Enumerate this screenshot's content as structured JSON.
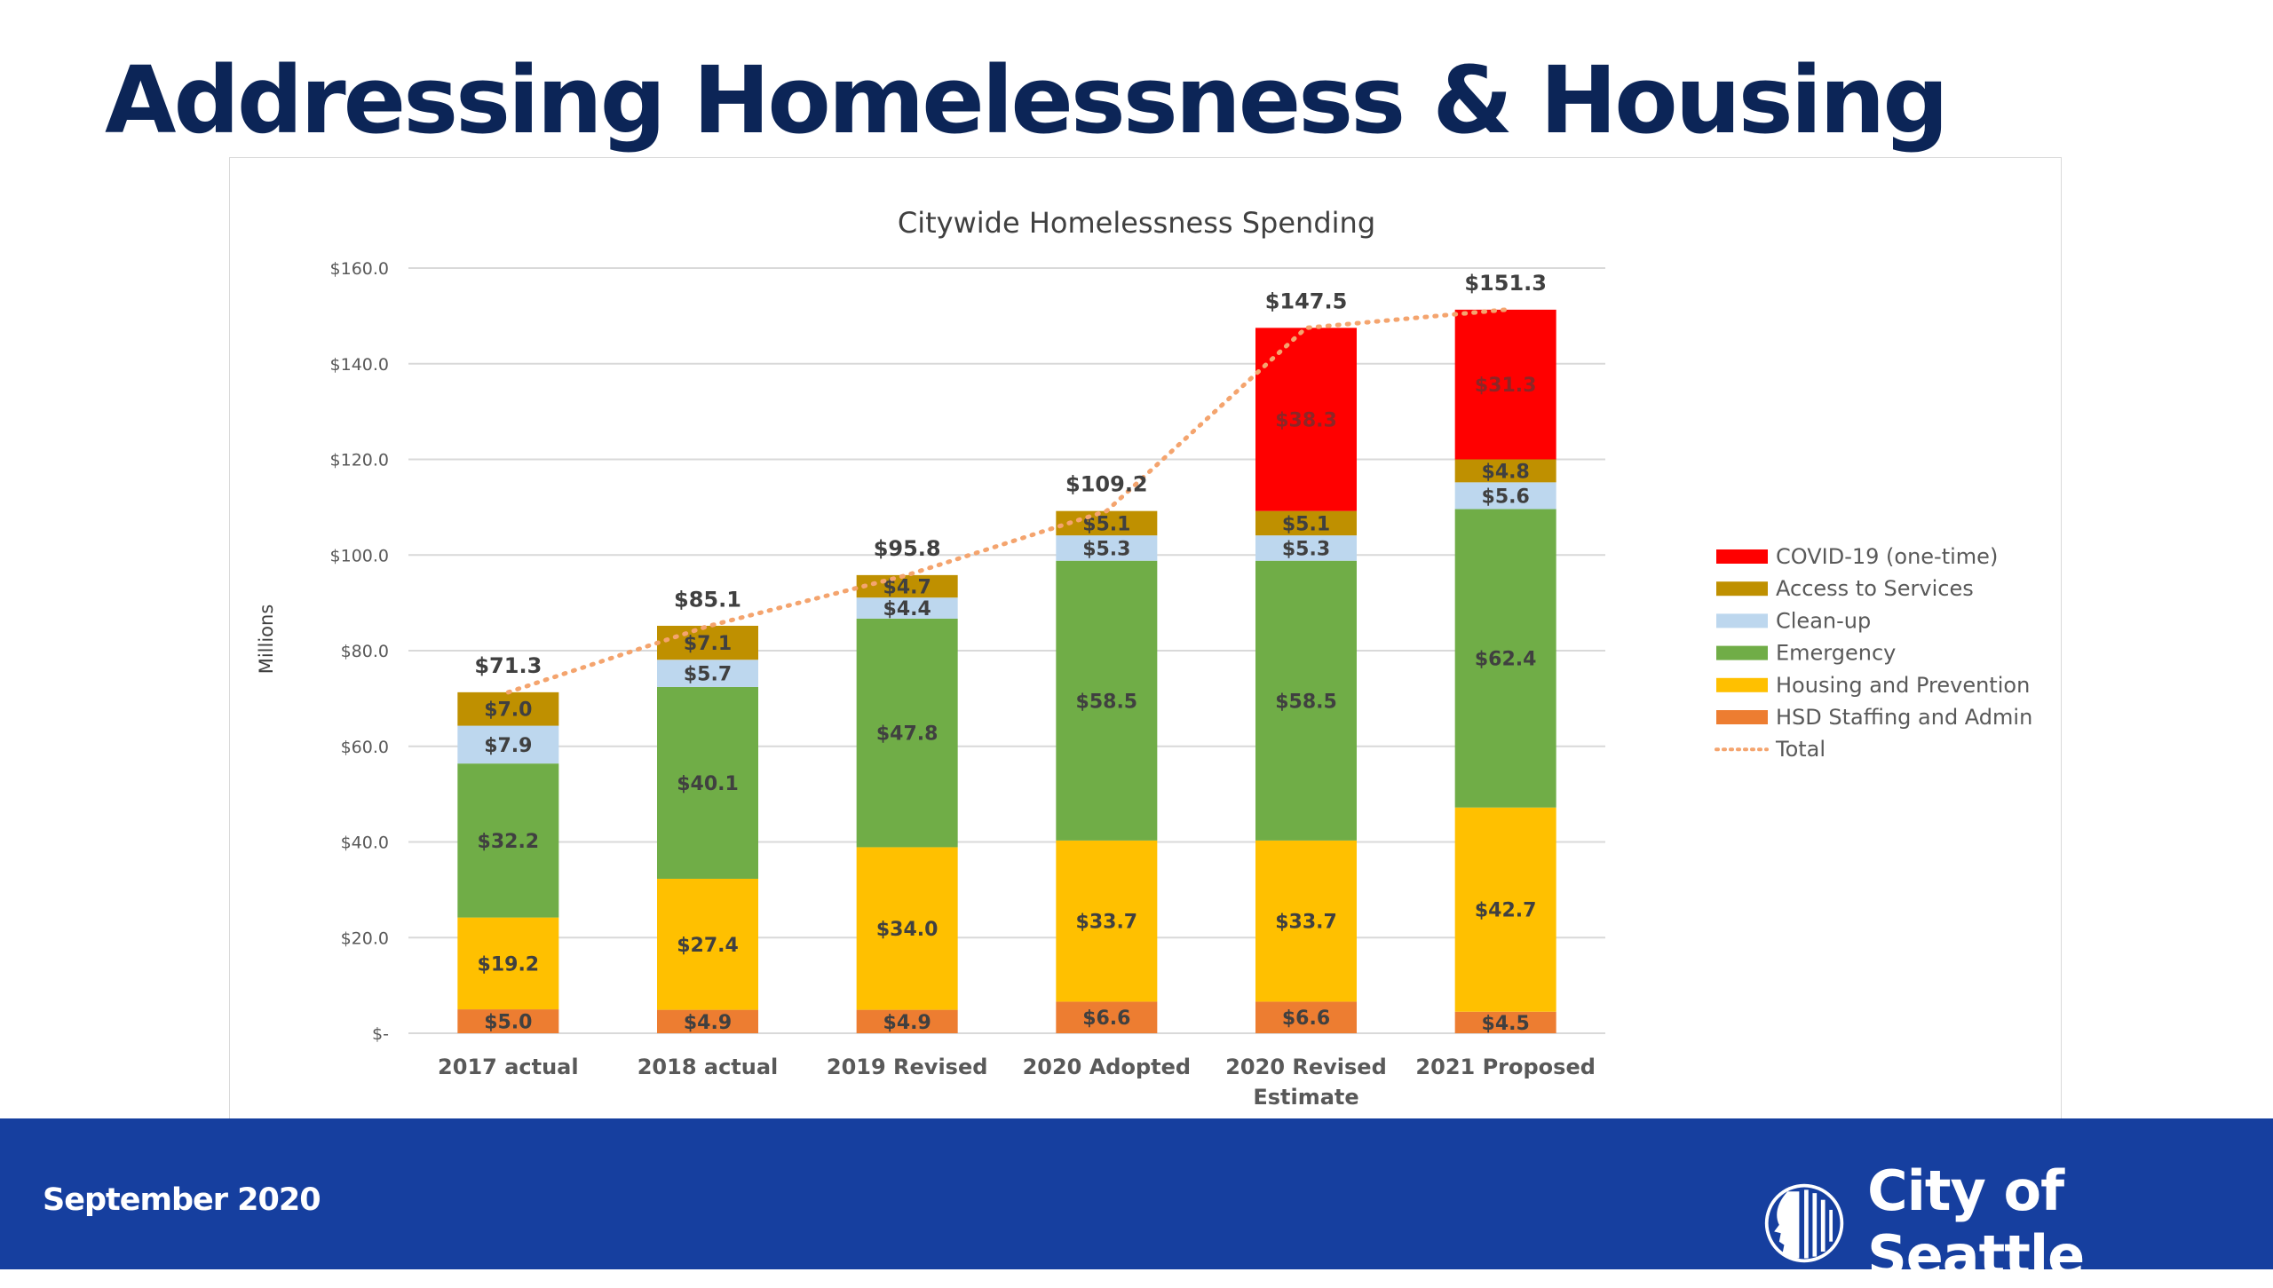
{
  "page": {
    "title": "Addressing Homelessness & Housing",
    "footer_date": "September 2020",
    "logo_text": "City of Seattle"
  },
  "chart_data": {
    "type": "bar",
    "stacked": true,
    "title": "Citywide Homelessness  Spending",
    "ylabel": "Millions",
    "xlabel": "",
    "ylim": [
      0,
      160
    ],
    "yticks": [
      0,
      20,
      40,
      60,
      80,
      100,
      120,
      140,
      160
    ],
    "ytick_labels": [
      "$-",
      "$20.0",
      "$40.0",
      "$60.0",
      "$80.0",
      "$100.0",
      "$120.0",
      "$140.0",
      "$160.0"
    ],
    "grid": true,
    "legend_position": "right",
    "categories": [
      "2017 actual",
      "2018 actual",
      "2019 Revised",
      "2020 Adopted",
      "2020 Revised Estimate",
      "2021 Proposed"
    ],
    "series": [
      {
        "name": "HSD Staffing and Admin",
        "color": "#ed7d31",
        "values": [
          5.0,
          4.9,
          4.9,
          6.6,
          6.6,
          4.5
        ]
      },
      {
        "name": "Housing and Prevention",
        "color": "#ffc000",
        "values": [
          19.2,
          27.4,
          34.0,
          33.7,
          33.7,
          42.7
        ]
      },
      {
        "name": "Emergency",
        "color": "#70ad47",
        "values": [
          32.2,
          40.1,
          47.8,
          58.5,
          58.5,
          62.4
        ]
      },
      {
        "name": "Clean-up",
        "color": "#bdd7ee",
        "values": [
          7.9,
          5.7,
          4.4,
          5.3,
          5.3,
          5.6
        ]
      },
      {
        "name": "Access to Services",
        "color": "#bf9000",
        "values": [
          7.0,
          7.1,
          4.7,
          5.1,
          5.1,
          4.8
        ]
      },
      {
        "name": "COVID-19 (one-time)",
        "color": "#ff0000",
        "values": [
          null,
          null,
          null,
          null,
          38.3,
          31.3
        ]
      }
    ],
    "total": {
      "name": "Total",
      "color": "#f4a46e",
      "style": "dotted",
      "values": [
        71.3,
        85.1,
        95.8,
        109.2,
        147.5,
        151.3
      ]
    },
    "legend_order": [
      "COVID-19 (one-time)",
      "Access to Services",
      "Clean-up",
      "Emergency",
      "Housing and Prevention",
      "HSD Staffing and Admin",
      "Total"
    ]
  }
}
